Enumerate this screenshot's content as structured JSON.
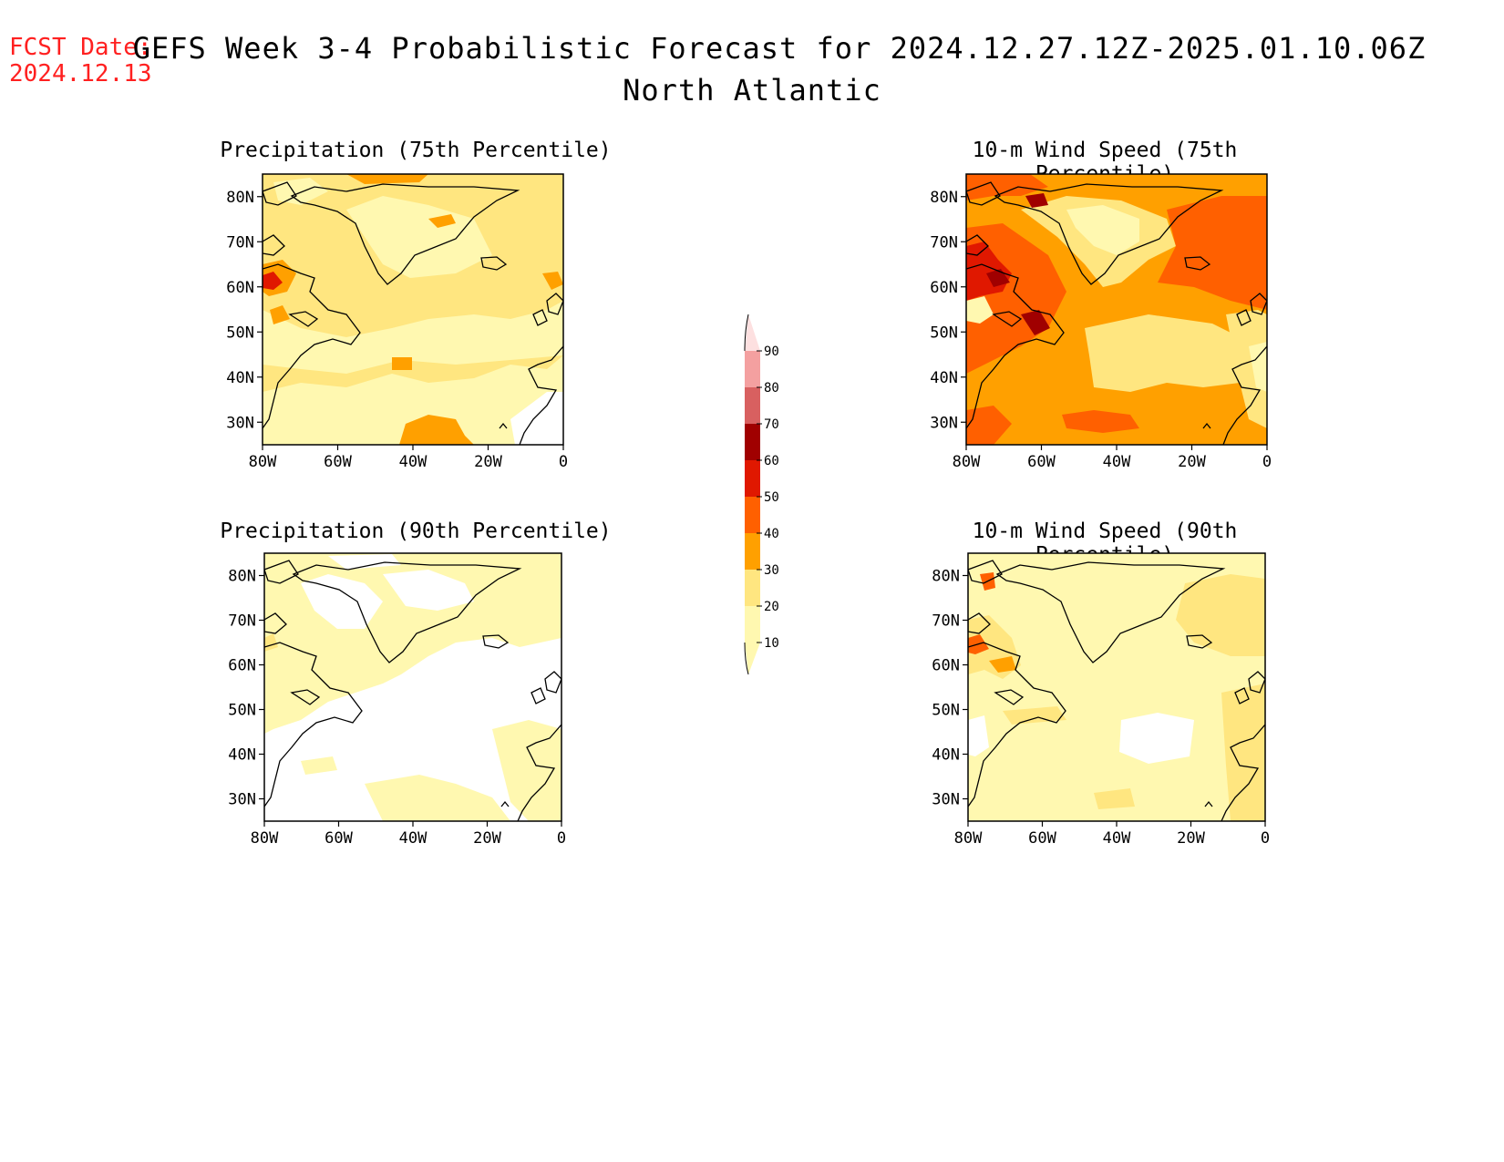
{
  "header": {
    "fcst_date_label": "FCST Date:",
    "fcst_date_value": "2024.12.13",
    "title": "GEFS Week 3-4 Probabilistic Forecast for 2024.12.27.12Z-2025.01.10.06Z",
    "subtitle": "North Atlantic"
  },
  "panels": [
    {
      "title": "Precipitation (75th Percentile)"
    },
    {
      "title": "10-m Wind Speed (75th Percentile)"
    },
    {
      "title": "Precipitation (90th Percentile)"
    },
    {
      "title": "10-m Wind Speed (90th Percentile)"
    }
  ],
  "axes": {
    "lat_labels": [
      "80N",
      "70N",
      "60N",
      "50N",
      "40N",
      "30N"
    ],
    "lat_values": [
      80,
      70,
      60,
      50,
      40,
      30
    ],
    "lon_labels": [
      "80W",
      "60W",
      "40W",
      "20W",
      "0"
    ],
    "lon_values": [
      -80,
      -60,
      -40,
      -20,
      0
    ],
    "lat_range": [
      25,
      85
    ],
    "lon_range": [
      -80,
      0
    ]
  },
  "colorbar": {
    "levels": [
      "10",
      "20",
      "30",
      "40",
      "50",
      "60",
      "70",
      "80",
      "90"
    ],
    "colors": [
      "#fff8b0",
      "#ffe680",
      "#ffa000",
      "#ff6000",
      "#e01800",
      "#a00000",
      "#d86060",
      "#f4a0a0",
      "#fde0e0"
    ]
  },
  "palette": {
    "c10": "#fff8b0",
    "c20": "#ffe680",
    "c30": "#ffa000",
    "c40": "#ff6000",
    "c50": "#e01800",
    "c60": "#a00000",
    "c70": "#d86060"
  }
}
